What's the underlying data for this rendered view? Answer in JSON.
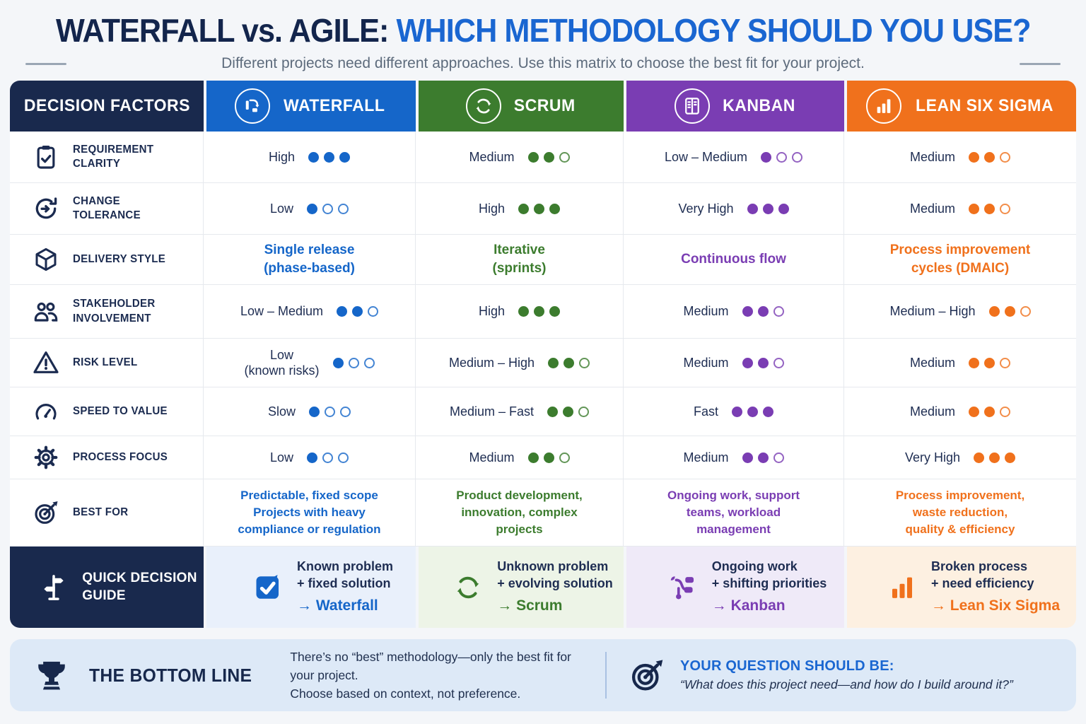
{
  "palette": {
    "navy": "#19294d",
    "accent_blue": "#1a66d1",
    "page_bg": "#f4f6f9"
  },
  "title": {
    "dark": "WATERFALL vs. AGILE:",
    "accent": "WHICH METHODOLOGY SHOULD YOU USE?"
  },
  "subtitle": "Different projects need different approaches. Use this matrix to choose the best fit for your project.",
  "columns": {
    "factors": {
      "label": "DECISION FACTORS"
    },
    "waterfall": {
      "label": "WATERFALL",
      "color": "#1566c9",
      "icon": "waterfall-icon"
    },
    "scrum": {
      "label": "SCRUM",
      "color": "#3c7c2e",
      "icon": "scrum-cycle-icon"
    },
    "kanban": {
      "label": "KANBAN",
      "color": "#7a3db3",
      "icon": "kanban-board-icon"
    },
    "lss": {
      "label": "LEAN SIX SIGMA",
      "color": "#f0711c",
      "icon": "bar-chart-icon"
    }
  },
  "rows": [
    {
      "factor": "REQUIREMENT CLARITY",
      "icon": "clipboard-check-icon",
      "cells": [
        {
          "level": "High",
          "sub": "",
          "dots": 3
        },
        {
          "level": "Medium",
          "sub": "",
          "dots": 2
        },
        {
          "level": "Low – Medium",
          "sub": "",
          "dots": 1
        },
        {
          "level": "Medium",
          "sub": "",
          "dots": 2
        }
      ]
    },
    {
      "factor": "CHANGE TOLERANCE",
      "icon": "change-arrow-icon",
      "cells": [
        {
          "level": "Low",
          "sub": "",
          "dots": 1
        },
        {
          "level": "High",
          "sub": "",
          "dots": 3
        },
        {
          "level": "Very High",
          "sub": "",
          "dots": 3
        },
        {
          "level": "Medium",
          "sub": "",
          "dots": 2
        }
      ]
    },
    {
      "factor": "DELIVERY STYLE",
      "icon": "package-icon",
      "cells": [
        {
          "line1": "Single release",
          "line2": "(phase-based)"
        },
        {
          "line1": "Iterative",
          "line2": "(sprints)"
        },
        {
          "line1": "Continuous flow",
          "line2": ""
        },
        {
          "line1": "Process improvement",
          "line2": "cycles (DMAIC)"
        }
      ]
    },
    {
      "factor": "STAKEHOLDER INVOLVEMENT",
      "icon": "people-icon",
      "cells": [
        {
          "level": "Low – Medium",
          "sub": "",
          "dots": 2
        },
        {
          "level": "High",
          "sub": "",
          "dots": 3
        },
        {
          "level": "Medium",
          "sub": "",
          "dots": 2
        },
        {
          "level": "Medium – High",
          "sub": "",
          "dots": 2
        }
      ]
    },
    {
      "factor": "RISK LEVEL",
      "icon": "warning-triangle-icon",
      "cells": [
        {
          "level": "Low",
          "sub": "(known risks)",
          "dots": 1
        },
        {
          "level": "Medium – High",
          "sub": "",
          "dots": 2
        },
        {
          "level": "Medium",
          "sub": "",
          "dots": 2
        },
        {
          "level": "Medium",
          "sub": "",
          "dots": 2
        }
      ]
    },
    {
      "factor": "SPEED TO VALUE",
      "icon": "gauge-icon",
      "cells": [
        {
          "level": "Slow",
          "sub": "",
          "dots": 1
        },
        {
          "level": "Medium – Fast",
          "sub": "",
          "dots": 2
        },
        {
          "level": "Fast",
          "sub": "",
          "dots": 3
        },
        {
          "level": "Medium",
          "sub": "",
          "dots": 2
        }
      ]
    },
    {
      "factor": "PROCESS FOCUS",
      "icon": "gear-icon",
      "cells": [
        {
          "level": "Low",
          "sub": "",
          "dots": 1
        },
        {
          "level": "Medium",
          "sub": "",
          "dots": 2
        },
        {
          "level": "Medium",
          "sub": "",
          "dots": 2
        },
        {
          "level": "Very High",
          "sub": "",
          "dots": 3
        }
      ]
    },
    {
      "factor": "BEST FOR",
      "icon": "target-dart-icon",
      "cells": [
        {
          "line1": "Predictable, fixed scope",
          "line2": "Projects with heavy",
          "line3": "compliance or regulation"
        },
        {
          "line1": "Product development,",
          "line2": "innovation, complex",
          "line3": "projects"
        },
        {
          "line1": "Ongoing work, support",
          "line2": "teams, workload",
          "line3": "management"
        },
        {
          "line1": "Process improvement,",
          "line2": "waste reduction,",
          "line3": "quality & efficiency"
        }
      ]
    }
  ],
  "quick_guide": {
    "label_line1": "QUICK DECISION",
    "label_line2": "GUIDE",
    "icon": "signpost-icon",
    "cells": [
      {
        "icon": "checkbox-icon",
        "line1": "Known problem",
        "line2": "+ fixed solution",
        "arrow": "→",
        "target": "Waterfall"
      },
      {
        "icon": "scrum-cycle-icon",
        "line1": "Unknown problem",
        "line2": "+ evolving solution",
        "arrow": "→",
        "target": "Scrum"
      },
      {
        "icon": "workflow-icon",
        "line1": "Ongoing work",
        "line2": "+ shifting priorities",
        "arrow": "→",
        "target": "Kanban"
      },
      {
        "icon": "bar-chart-icon",
        "line1": "Broken process",
        "line2": "+ need efficiency",
        "arrow": "→",
        "target": "Lean Six Sigma"
      }
    ]
  },
  "bottom": {
    "icon": "trophy-icon",
    "title": "THE BOTTOM LINE",
    "text_line1": "There’s no “best” methodology—only the best fit for your project.",
    "text_line2": "Choose based on context, not preference.",
    "question_icon": "target-dart-icon",
    "question_label": "YOUR QUESTION SHOULD BE:",
    "question_quote": "“What does this project need—and how do I build around it?”"
  }
}
